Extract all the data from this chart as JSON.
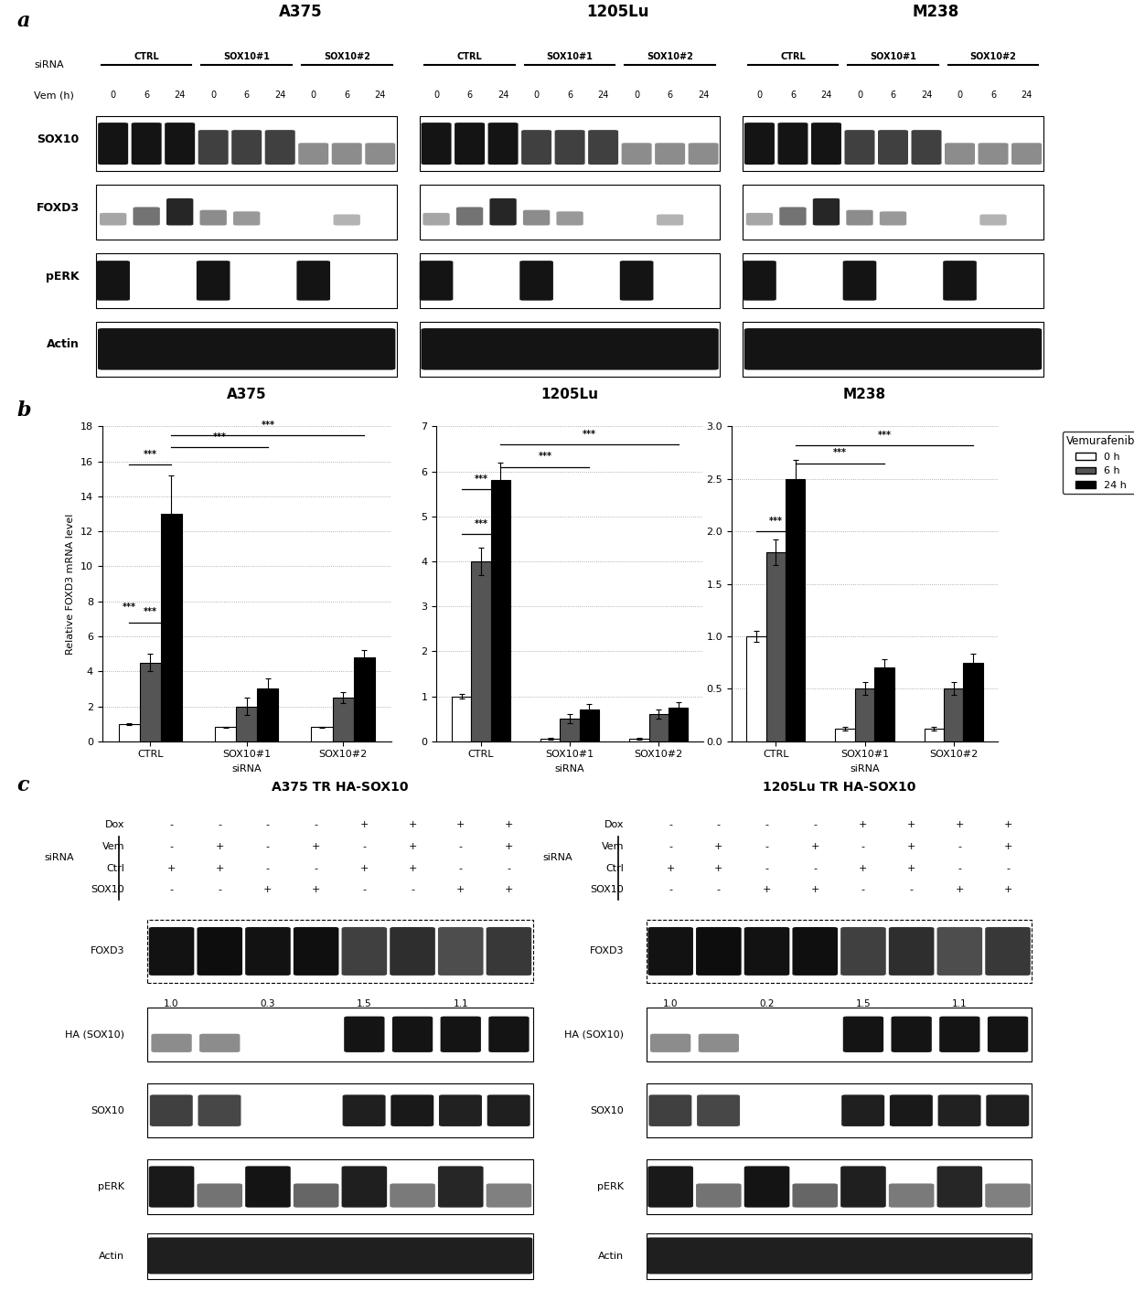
{
  "panel_a": {
    "cell_lines": [
      "A375",
      "1205Lu",
      "M238"
    ],
    "sirna_labels": [
      "CTRL",
      "SOX10#1",
      "SOX10#2"
    ],
    "vem_labels": [
      "0",
      "6",
      "24",
      "0",
      "6",
      "24",
      "0",
      "6",
      "24"
    ],
    "protein_labels": [
      "SOX10",
      "FOXD3",
      "pERK",
      "Actin"
    ]
  },
  "panel_b": {
    "cell_lines": [
      "A375",
      "1205Lu",
      "M238"
    ],
    "sirna_groups": [
      "CTRL",
      "SOX10#1",
      "SOX10#2"
    ],
    "legend_title": "Vemurafenib",
    "legend_items": [
      "0 h",
      "6 h",
      "24 h"
    ],
    "bar_colors": [
      "white",
      "#555555",
      "black"
    ],
    "bar_edge_color": "black",
    "ylabel": "Relative FOXD3 mRNA level",
    "xlabel": "siRNA",
    "A375": {
      "ylim": [
        0,
        18
      ],
      "yticks": [
        0,
        2,
        4,
        6,
        8,
        10,
        12,
        14,
        16,
        18
      ],
      "data": {
        "CTRL": {
          "0h": [
            1.0,
            0.05
          ],
          "6h": [
            4.5,
            0.5
          ],
          "24h": [
            13.0,
            2.2
          ]
        },
        "SOX10#1": {
          "0h": [
            0.8,
            0.05
          ],
          "6h": [
            2.0,
            0.5
          ],
          "24h": [
            3.0,
            0.6
          ]
        },
        "SOX10#2": {
          "0h": [
            0.8,
            0.05
          ],
          "6h": [
            2.5,
            0.3
          ],
          "24h": [
            4.8,
            0.4
          ]
        }
      }
    },
    "1205Lu": {
      "ylim": [
        0,
        7
      ],
      "yticks": [
        0,
        1,
        2,
        3,
        4,
        5,
        6,
        7
      ],
      "data": {
        "CTRL": {
          "0h": [
            1.0,
            0.05
          ],
          "6h": [
            4.0,
            0.3
          ],
          "24h": [
            5.8,
            0.4
          ]
        },
        "SOX10#1": {
          "0h": [
            0.05,
            0.02
          ],
          "6h": [
            0.5,
            0.1
          ],
          "24h": [
            0.7,
            0.12
          ]
        },
        "SOX10#2": {
          "0h": [
            0.05,
            0.02
          ],
          "6h": [
            0.6,
            0.1
          ],
          "24h": [
            0.75,
            0.12
          ]
        }
      }
    },
    "M238": {
      "ylim": [
        0,
        3
      ],
      "yticks": [
        0,
        0.5,
        1.0,
        1.5,
        2.0,
        2.5,
        3.0
      ],
      "data": {
        "CTRL": {
          "0h": [
            1.0,
            0.05
          ],
          "6h": [
            1.8,
            0.12
          ],
          "24h": [
            2.5,
            0.18
          ]
        },
        "SOX10#1": {
          "0h": [
            0.12,
            0.02
          ],
          "6h": [
            0.5,
            0.06
          ],
          "24h": [
            0.7,
            0.08
          ]
        },
        "SOX10#2": {
          "0h": [
            0.12,
            0.02
          ],
          "6h": [
            0.5,
            0.06
          ],
          "24h": [
            0.75,
            0.08
          ]
        }
      }
    }
  },
  "panel_c": {
    "left_title": "A375 TR HA-SOX10",
    "right_title": "1205Lu TR HA-SOX10",
    "condition_labels": [
      "Dox",
      "Vem",
      "Ctrl",
      "SOX10"
    ],
    "left_conditions": [
      [
        "-",
        "-",
        "-",
        "-",
        "+",
        "+",
        "+",
        "+"
      ],
      [
        "-",
        "+",
        "-",
        "+",
        "-",
        "+",
        "-",
        "+"
      ],
      [
        "+",
        "+",
        "-",
        "-",
        "+",
        "+",
        "-",
        "-"
      ],
      [
        "-",
        "-",
        "+",
        "+",
        "-",
        "-",
        "+",
        "+"
      ]
    ],
    "right_conditions": [
      [
        "-",
        "-",
        "-",
        "-",
        "+",
        "+",
        "+",
        "+"
      ],
      [
        "-",
        "+",
        "-",
        "+",
        "-",
        "+",
        "-",
        "+"
      ],
      [
        "+",
        "+",
        "-",
        "-",
        "+",
        "+",
        "-",
        "-"
      ],
      [
        "-",
        "-",
        "+",
        "+",
        "-",
        "-",
        "+",
        "+"
      ]
    ],
    "protein_labels": [
      "FOXD3",
      "HA (SOX10)",
      "SOX10",
      "pERK",
      "Actin"
    ],
    "foxd3_numbers_left": [
      "1.0",
      "0.3",
      "1.5",
      "1.1"
    ],
    "foxd3_numbers_right": [
      "1.0",
      "0.2",
      "1.5",
      "1.1"
    ],
    "n_lanes": 8
  }
}
